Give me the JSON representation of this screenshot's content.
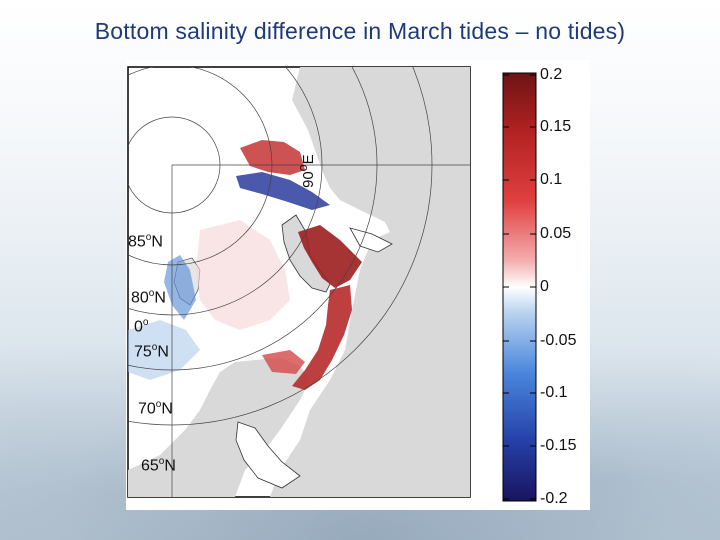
{
  "slide": {
    "title": "Bottom salinity difference in March tides – no tides)"
  },
  "map": {
    "latitude_labels": [
      {
        "deg": "85",
        "suffix": "N"
      },
      {
        "deg": "80",
        "suffix": "N"
      },
      {
        "deg": "75",
        "suffix": "N"
      },
      {
        "deg": "70",
        "suffix": "N"
      },
      {
        "deg": "65",
        "suffix": "N"
      }
    ],
    "longitude_labels": [
      {
        "deg": "0",
        "suffix": ""
      },
      {
        "deg": "90",
        "suffix": "E"
      }
    ],
    "land_color": "#d9d9d9",
    "ocean_color": "#ffffff"
  },
  "colorbar": {
    "ticks": [
      "0.2",
      "0.15",
      "0.1",
      "0.05",
      "0",
      "-0.05",
      "-0.1",
      "-0.15",
      "-0.2"
    ],
    "colors": [
      "#7a1a1a",
      "#d62c2c",
      "#f08a8a",
      "#ffffff",
      "#8fb8e6",
      "#2f6bd6",
      "#1a1a6e"
    ]
  }
}
